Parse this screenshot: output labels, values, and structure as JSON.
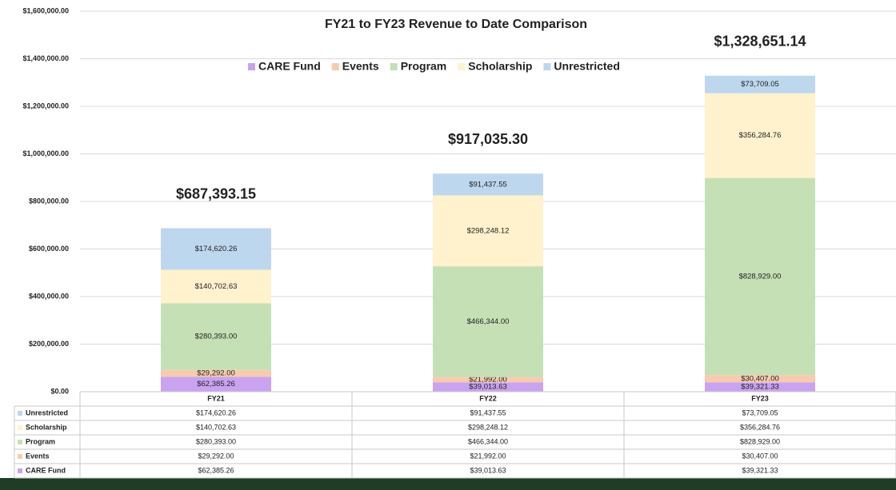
{
  "chart_data": {
    "type": "stacked_bar",
    "title": "FY21 to FY23 Revenue to Date Comparison",
    "categories": [
      "FY21",
      "FY22",
      "FY23"
    ],
    "series": [
      {
        "name": "CARE Fund",
        "color": "#c9a3f2",
        "values": [
          62385.26,
          39013.63,
          39321.33
        ],
        "value_labels": [
          "$62,385.26",
          "$39,013.63",
          "$39,321.33"
        ]
      },
      {
        "name": "Events",
        "color": "#f8cbad",
        "values": [
          29292.0,
          21992.0,
          30407.0
        ],
        "value_labels": [
          "$29,292.00",
          "$21,992.00",
          "$30,407.00"
        ]
      },
      {
        "name": "Program",
        "color": "#c5e0b4",
        "values": [
          280393.0,
          466344.0,
          828929.0
        ],
        "value_labels": [
          "$280,393.00",
          "$466,344.00",
          "$828,929.00"
        ]
      },
      {
        "name": "Scholarship",
        "color": "#fff2cc",
        "values": [
          140702.63,
          298248.12,
          356284.76
        ],
        "value_labels": [
          "$140,702.63",
          "$298,248.12",
          "$356,284.76"
        ]
      },
      {
        "name": "Unrestricted",
        "color": "#bdd7ee",
        "values": [
          174620.26,
          91437.55,
          73709.05
        ],
        "value_labels": [
          "$174,620.26",
          "$91,437.55",
          "$73,709.05"
        ]
      }
    ],
    "totals": [
      687393.15,
      917035.3,
      1328651.14
    ],
    "total_labels": [
      "$687,393.15",
      "$917,035.30",
      "$1,328,651.14"
    ],
    "ylim": [
      0,
      1600000
    ],
    "yticks": [
      {
        "value": 0,
        "label": "$0.00"
      },
      {
        "value": 200000,
        "label": "$200,000.00"
      },
      {
        "value": 400000,
        "label": "$400,000.00"
      },
      {
        "value": 600000,
        "label": "$600,000.00"
      },
      {
        "value": 800000,
        "label": "$800,000.00"
      },
      {
        "value": 1000000,
        "label": "$1,000,000.00"
      },
      {
        "value": 1200000,
        "label": "$1,200,000.00"
      },
      {
        "value": 1400000,
        "label": "$1,400,000.00"
      },
      {
        "value": 1600000,
        "label": "$1,600,000.00"
      }
    ],
    "grid": true,
    "legend": "top"
  }
}
